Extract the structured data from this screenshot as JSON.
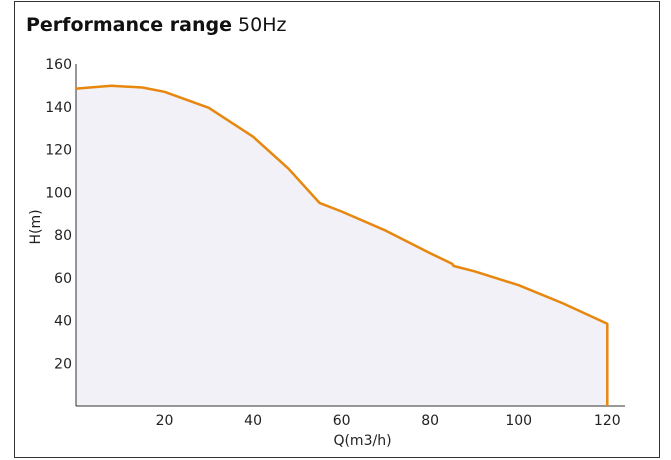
{
  "title": {
    "bold": "Performance range",
    "suffix": "50Hz"
  },
  "chart_data": {
    "type": "area",
    "title": "Performance range 50Hz",
    "xlabel": "Q(m3/h)",
    "ylabel": "H(m)",
    "xlim": [
      0,
      124
    ],
    "ylim": [
      0,
      160
    ],
    "xticks": [
      20,
      40,
      60,
      80,
      100,
      120
    ],
    "yticks": [
      20,
      40,
      60,
      80,
      100,
      120,
      140,
      160
    ],
    "grid": false,
    "colors": {
      "line": "#E8870E",
      "fill": "#F1F1F7"
    },
    "series": [
      {
        "x": [
          0,
          8,
          15,
          20,
          30,
          40,
          48,
          55,
          60,
          70,
          80,
          85,
          85.3,
          90,
          100,
          110,
          120,
          120
        ],
        "y": [
          148.5,
          149.8,
          149,
          147,
          139.5,
          126,
          111,
          95,
          91,
          82,
          71.5,
          66.5,
          65.5,
          63,
          56.5,
          48,
          38.5,
          0
        ]
      }
    ]
  }
}
